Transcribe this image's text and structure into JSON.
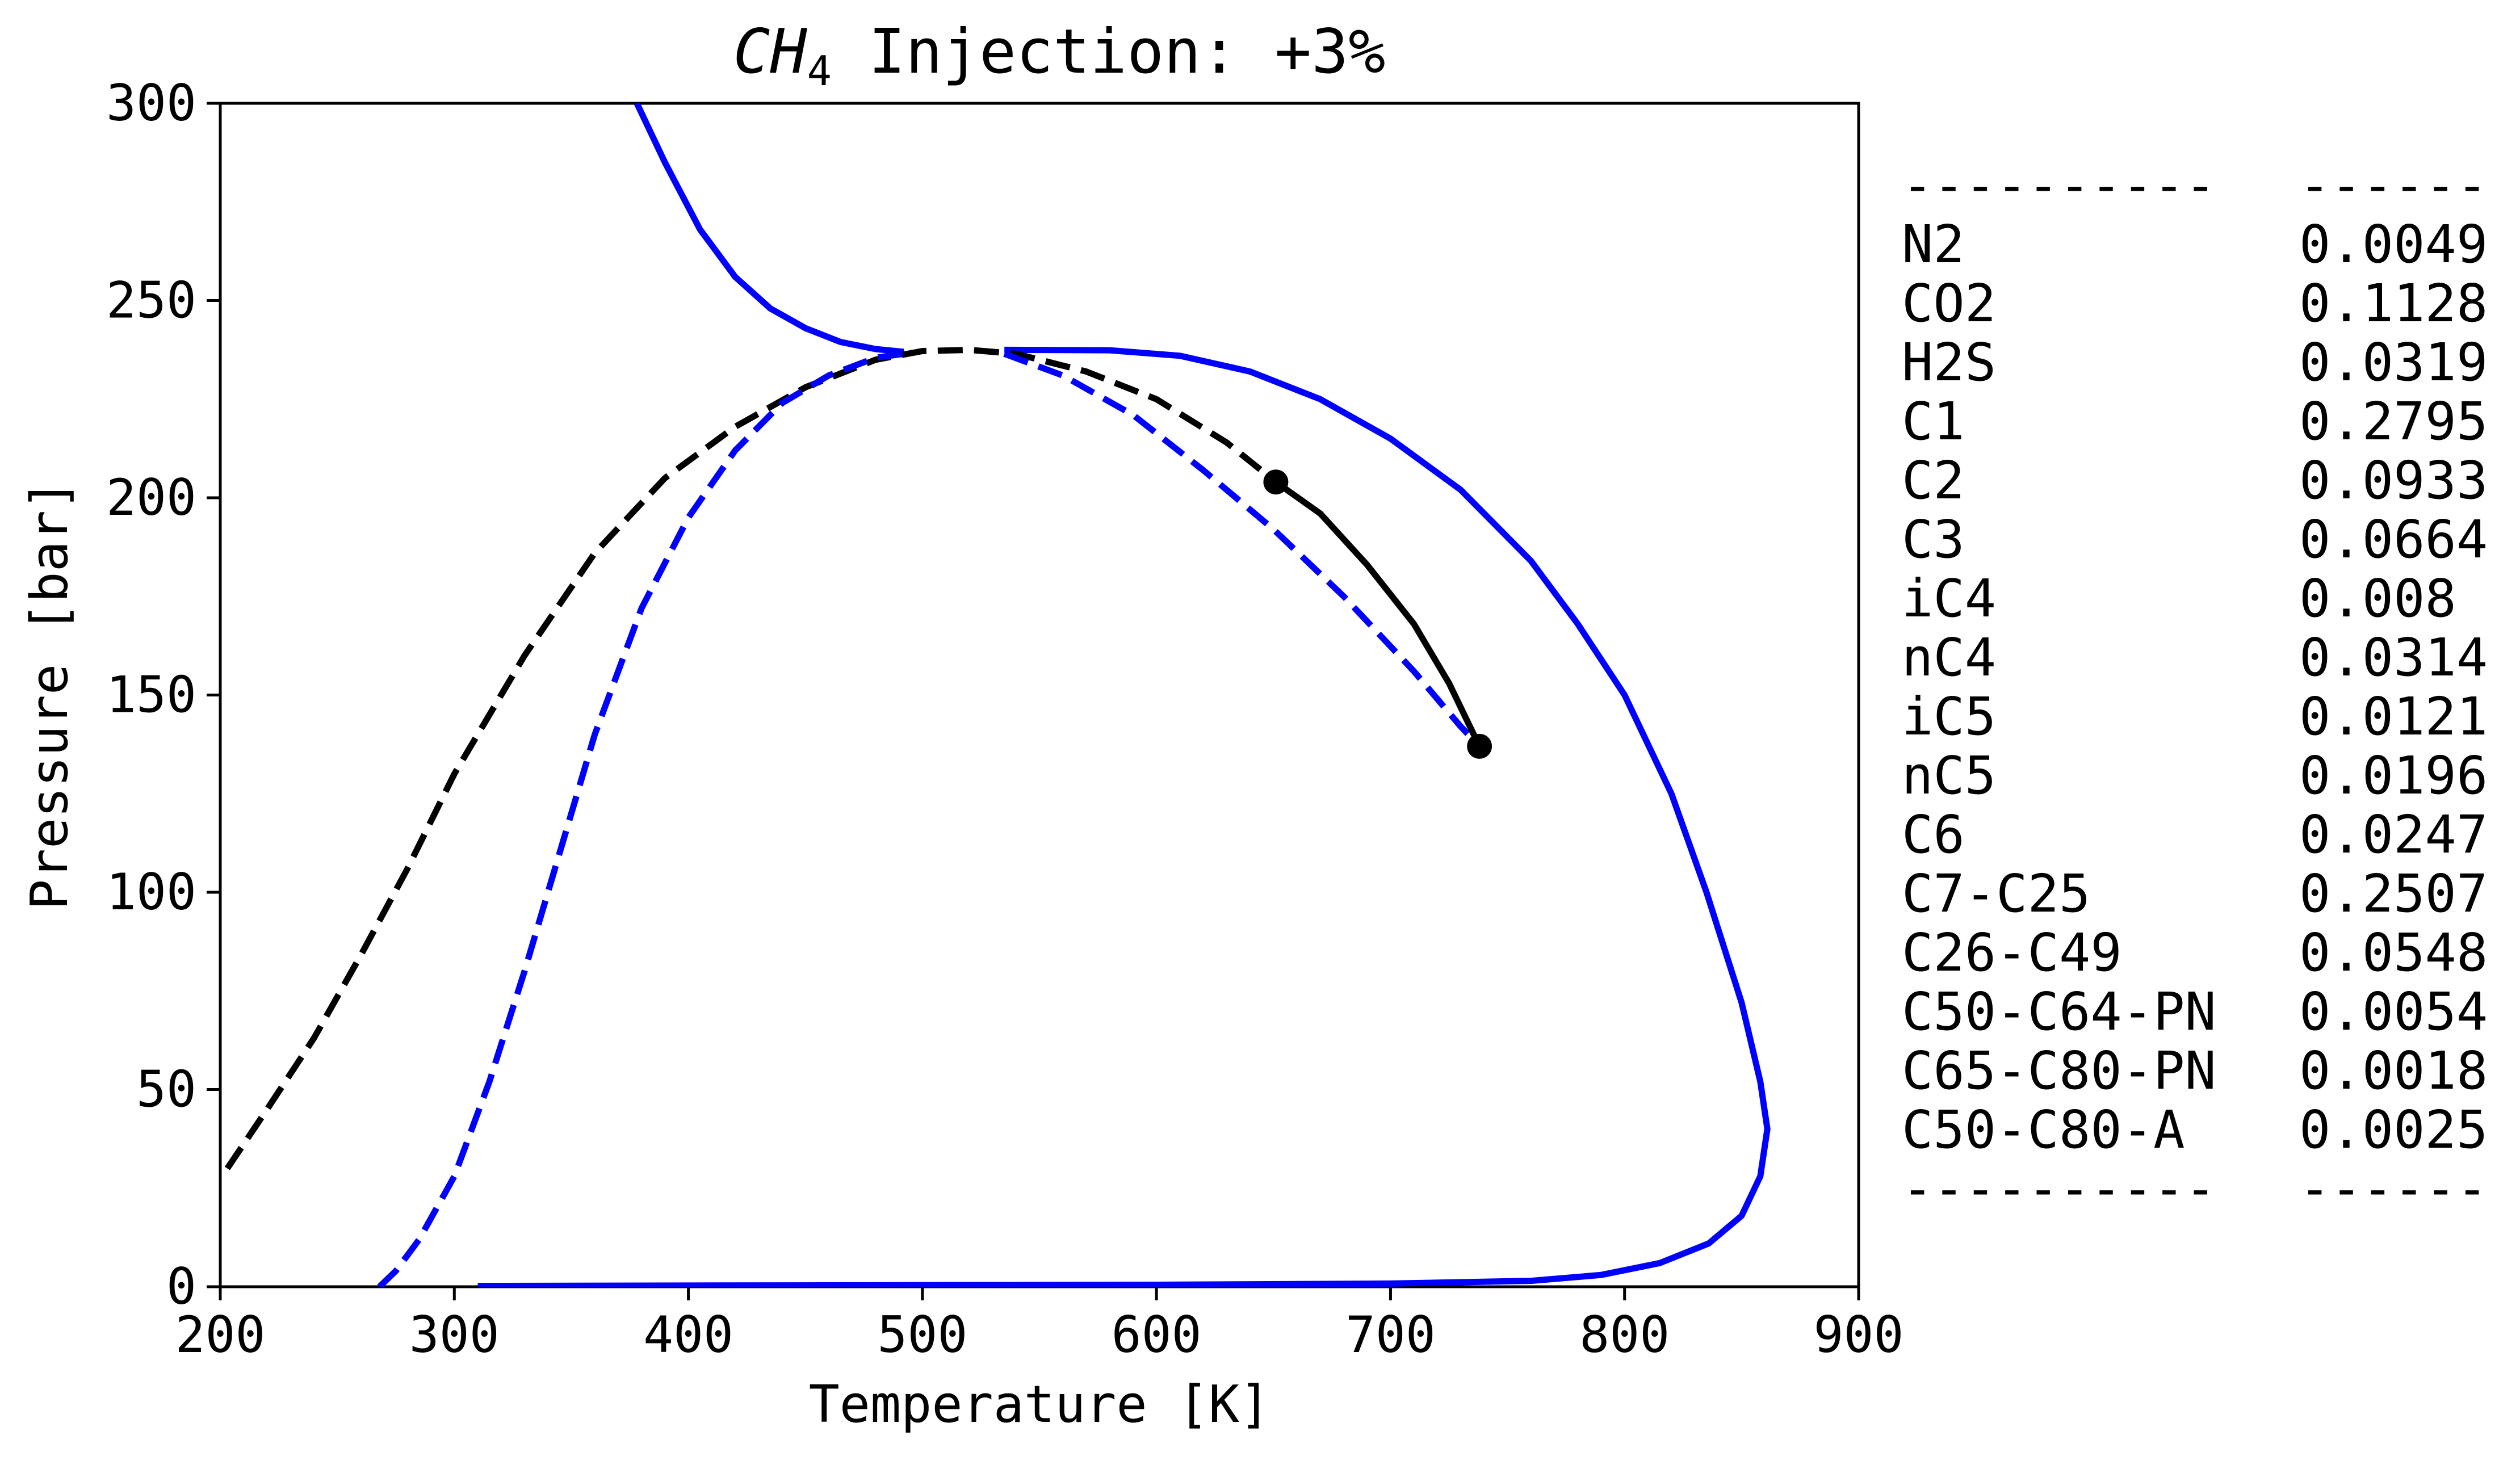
{
  "chart_data": {
    "type": "line",
    "title": {
      "species_main": "CH",
      "species_sub": "4",
      "rest": " Injection: +3%"
    },
    "xlabel": "Temperature [K]",
    "ylabel": "Pressure [bar]",
    "xlim": [
      200,
      900
    ],
    "ylim": [
      0,
      300
    ],
    "x_ticks": [
      200,
      300,
      400,
      500,
      600,
      700,
      800,
      900
    ],
    "y_ticks": [
      0,
      50,
      100,
      150,
      200,
      250,
      300
    ],
    "grid": false,
    "colors": {
      "blue": "#0000ff",
      "black": "#000000"
    },
    "series": [
      {
        "color": "#0000ff",
        "style": "solid",
        "points": [
          [
            378,
            300
          ],
          [
            390,
            285
          ],
          [
            405,
            268
          ],
          [
            420,
            256
          ],
          [
            435,
            248
          ],
          [
            450,
            243
          ],
          [
            465,
            239.5
          ],
          [
            480,
            237.7
          ],
          [
            492,
            237
          ]
        ]
      },
      {
        "color": "#0000ff",
        "style": "solid",
        "points": [
          [
            535,
            237.5
          ],
          [
            580,
            237.4
          ],
          [
            610,
            236
          ],
          [
            640,
            232
          ],
          [
            670,
            225
          ],
          [
            700,
            215
          ],
          [
            730,
            202
          ],
          [
            760,
            184
          ],
          [
            780,
            168
          ],
          [
            800,
            150
          ],
          [
            820,
            125
          ],
          [
            835,
            100
          ],
          [
            850,
            72
          ],
          [
            858,
            52
          ],
          [
            861,
            40
          ],
          [
            858,
            28
          ],
          [
            850,
            18
          ],
          [
            836,
            11
          ],
          [
            815,
            6
          ],
          [
            790,
            3
          ],
          [
            760,
            1.5
          ],
          [
            700,
            0.8
          ],
          [
            600,
            0.5
          ],
          [
            500,
            0.4
          ],
          [
            400,
            0.3
          ],
          [
            310,
            0.2
          ]
        ]
      },
      {
        "color": "#000000",
        "style": "dashed",
        "points": [
          [
            203,
            30
          ],
          [
            220,
            45
          ],
          [
            240,
            63
          ],
          [
            260,
            84
          ],
          [
            280,
            106
          ],
          [
            300,
            130
          ],
          [
            330,
            160
          ],
          [
            360,
            186
          ],
          [
            390,
            205
          ],
          [
            420,
            218
          ],
          [
            450,
            228
          ],
          [
            480,
            235
          ],
          [
            500,
            237.2
          ],
          [
            520,
            237.5
          ],
          [
            540,
            236.5
          ],
          [
            570,
            232
          ],
          [
            600,
            225
          ],
          [
            630,
            214
          ],
          [
            651,
            204
          ]
        ]
      },
      {
        "color": "#0000ff",
        "style": "dashed",
        "points": [
          [
            268,
            0
          ],
          [
            275,
            4
          ],
          [
            285,
            12
          ],
          [
            300,
            28
          ],
          [
            315,
            52
          ],
          [
            330,
            80
          ],
          [
            345,
            110
          ],
          [
            360,
            140
          ],
          [
            380,
            172
          ],
          [
            400,
            195
          ],
          [
            420,
            212
          ],
          [
            440,
            224
          ],
          [
            460,
            231
          ],
          [
            480,
            235.5
          ],
          [
            492,
            236.5
          ]
        ]
      },
      {
        "color": "#0000ff",
        "style": "dashed",
        "points": [
          [
            535,
            236.5
          ],
          [
            560,
            231
          ],
          [
            590,
            221
          ],
          [
            620,
            207
          ],
          [
            650,
            192
          ],
          [
            680,
            175
          ],
          [
            710,
            156
          ],
          [
            730,
            142
          ],
          [
            738,
            137
          ]
        ]
      },
      {
        "color": "#000000",
        "style": "solid",
        "points": [
          [
            651,
            204
          ],
          [
            670,
            196
          ],
          [
            690,
            183
          ],
          [
            710,
            168
          ],
          [
            725,
            153
          ],
          [
            738,
            137
          ]
        ]
      }
    ],
    "markers": [
      {
        "x": 651,
        "y": 204,
        "color": "#000000"
      },
      {
        "x": 738,
        "y": 137,
        "color": "#000000"
      }
    ]
  },
  "composition_table": {
    "separator_name": "----------",
    "separator_value": "------",
    "rows": [
      {
        "name": "N2",
        "value": "0.0049"
      },
      {
        "name": "CO2",
        "value": "0.1128"
      },
      {
        "name": "H2S",
        "value": "0.0319"
      },
      {
        "name": "C1",
        "value": "0.2795"
      },
      {
        "name": "C2",
        "value": "0.0933"
      },
      {
        "name": "C3",
        "value": "0.0664"
      },
      {
        "name": "iC4",
        "value": "0.008"
      },
      {
        "name": "nC4",
        "value": "0.0314"
      },
      {
        "name": "iC5",
        "value": "0.0121"
      },
      {
        "name": "nC5",
        "value": "0.0196"
      },
      {
        "name": "C6",
        "value": "0.0247"
      },
      {
        "name": "C7-C25",
        "value": "0.2507"
      },
      {
        "name": "C26-C49",
        "value": "0.0548"
      },
      {
        "name": "C50-C64-PN",
        "value": "0.0054"
      },
      {
        "name": "C65-C80-PN",
        "value": "0.0018"
      },
      {
        "name": "C50-C80-A",
        "value": "0.0025"
      }
    ]
  }
}
